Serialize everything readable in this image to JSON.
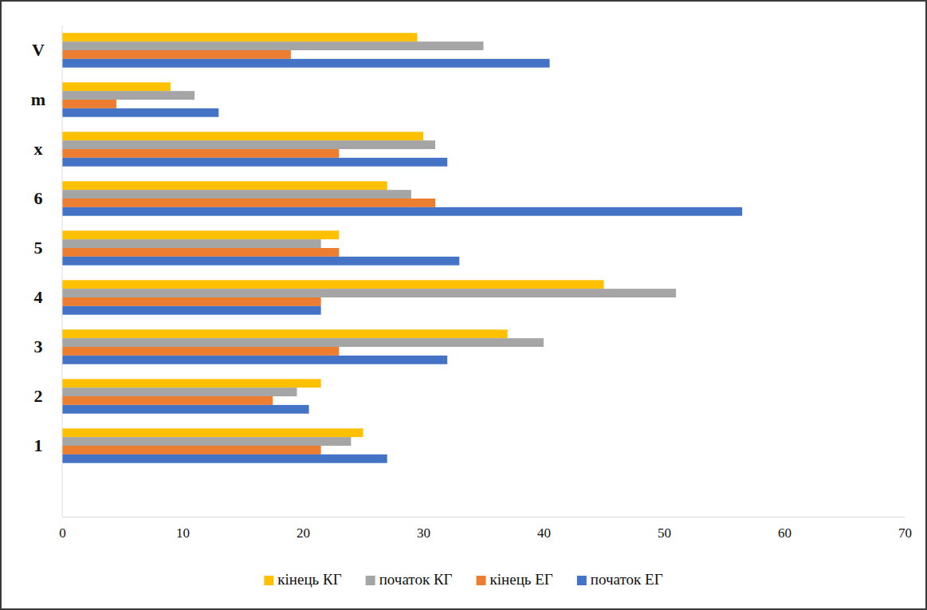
{
  "chart_data": {
    "type": "bar",
    "orientation": "horizontal",
    "categories": [
      "1",
      "2",
      "3",
      "4",
      "5",
      "6",
      "x",
      "m",
      "V"
    ],
    "series": [
      {
        "name": "кінець КГ",
        "color": "#ffc000",
        "values": [
          25,
          21.5,
          37,
          45,
          23,
          27,
          30,
          9,
          29.5
        ]
      },
      {
        "name": "початок КГ",
        "color": "#a5a5a5",
        "values": [
          24,
          19.5,
          40,
          51,
          21.5,
          29,
          31,
          11,
          35
        ]
      },
      {
        "name": "кінець ЕГ",
        "color": "#ed7d31",
        "values": [
          21.5,
          17.5,
          23,
          21.5,
          23,
          31,
          23,
          4.5,
          19
        ]
      },
      {
        "name": "початок ЕГ",
        "color": "#4472c4",
        "values": [
          27,
          20.5,
          32,
          21.5,
          33,
          56.5,
          32,
          13,
          40.5
        ]
      }
    ],
    "xlim": [
      0,
      70
    ],
    "xticks": [
      0,
      10,
      20,
      30,
      40,
      50,
      60,
      70
    ],
    "grid": false,
    "legend": "bottom"
  }
}
